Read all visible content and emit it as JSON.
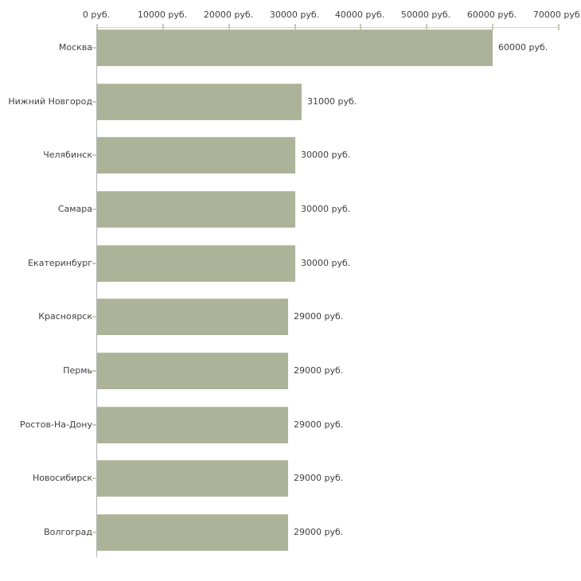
{
  "chart_data": {
    "type": "bar",
    "orientation": "horizontal",
    "title": "",
    "xlabel": "",
    "ylabel": "",
    "unit": "руб.",
    "xlim": [
      0,
      70000
    ],
    "grid": false,
    "legend": false,
    "categories": [
      "Москва",
      "Нижний Новгород",
      "Челябинск",
      "Самара",
      "Екатеринбург",
      "Красноярск",
      "Пермь",
      "Ростов-На-Дону",
      "Новосибирск",
      "Волгоград"
    ],
    "values": [
      60000,
      31000,
      30000,
      30000,
      30000,
      29000,
      29000,
      29000,
      29000,
      29000
    ],
    "value_labels": [
      "60000 руб.",
      "31000 руб.",
      "30000 руб.",
      "30000 руб.",
      "30000 руб.",
      "29000 руб.",
      "29000 руб.",
      "29000 руб.",
      "29000 руб.",
      "29000 руб."
    ],
    "x_ticks": [
      0,
      10000,
      20000,
      30000,
      40000,
      50000,
      60000,
      70000
    ],
    "x_tick_labels": [
      "0 руб.",
      "10000 руб.",
      "20000 руб.",
      "30000 руб.",
      "40000 руб.",
      "50000 руб.",
      "60000 руб.",
      "70000 руб."
    ],
    "colors": {
      "bar_fill": "#adb399",
      "bar_edge": "#c1c5ab",
      "axis_line": "#d6d8c2",
      "x_tick": "#c6caae",
      "category_tick": "#c9cdb3",
      "baseline": "#b3b3b3",
      "text": "#3f3f3f",
      "background": "#ffffff"
    }
  }
}
